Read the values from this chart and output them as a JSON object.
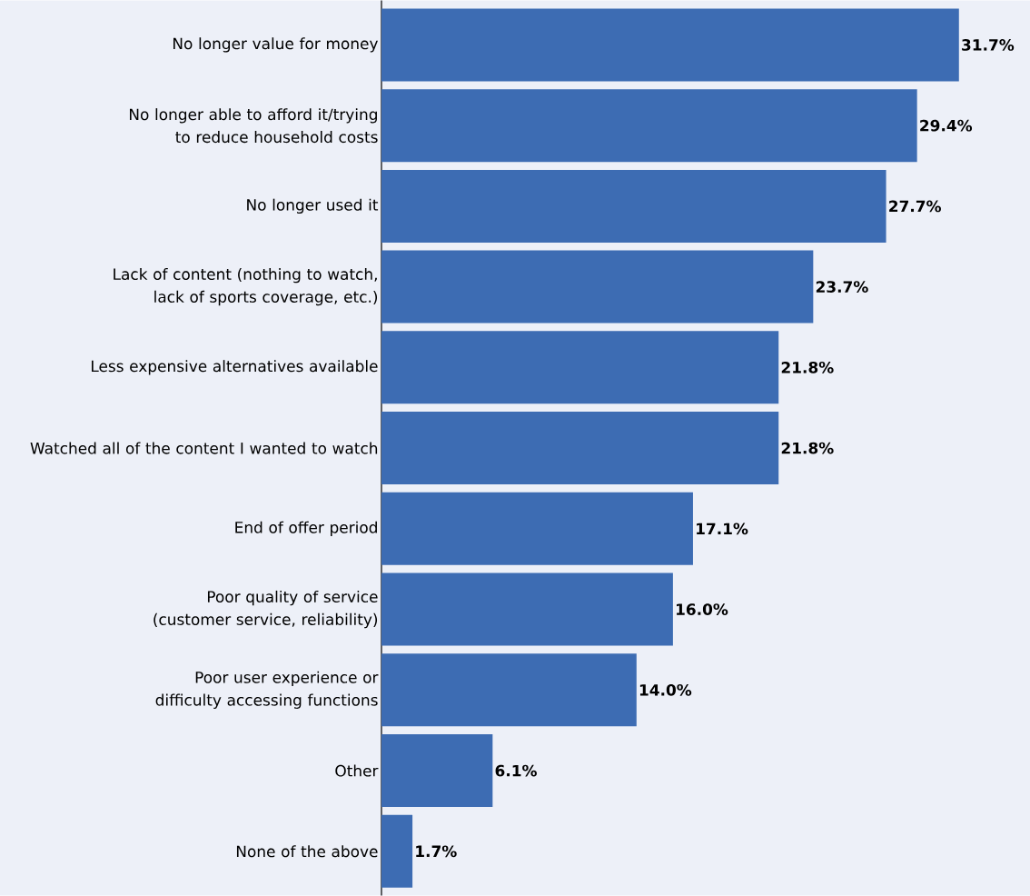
{
  "chart_data": {
    "type": "bar",
    "orientation": "horizontal",
    "categories": [
      "No longer value for money",
      "No longer able to afford it/trying to reduce household costs",
      "No longer used it",
      "Lack of content (nothing to watch, lack of sports coverage, etc.)",
      "Less expensive alternatives available",
      "Watched all of the content I wanted to watch",
      "End of offer period",
      "Poor quality of service (customer service, reliability)",
      "Poor user experience or difficulty accessing functions",
      "Other",
      "None of the above"
    ],
    "values": [
      31.7,
      29.4,
      27.7,
      23.7,
      21.8,
      21.8,
      17.1,
      16.0,
      14.0,
      6.1,
      1.7
    ],
    "value_labels": [
      "31.7%",
      "29.4%",
      "27.7%",
      "23.7%",
      "21.8%",
      "21.8%",
      "17.1%",
      "16.0%",
      "14.0%",
      "6.1%",
      "1.7%"
    ],
    "color": "#3d6cb3",
    "xlim": [
      0,
      35.6
    ],
    "tick_labels": "y"
  }
}
